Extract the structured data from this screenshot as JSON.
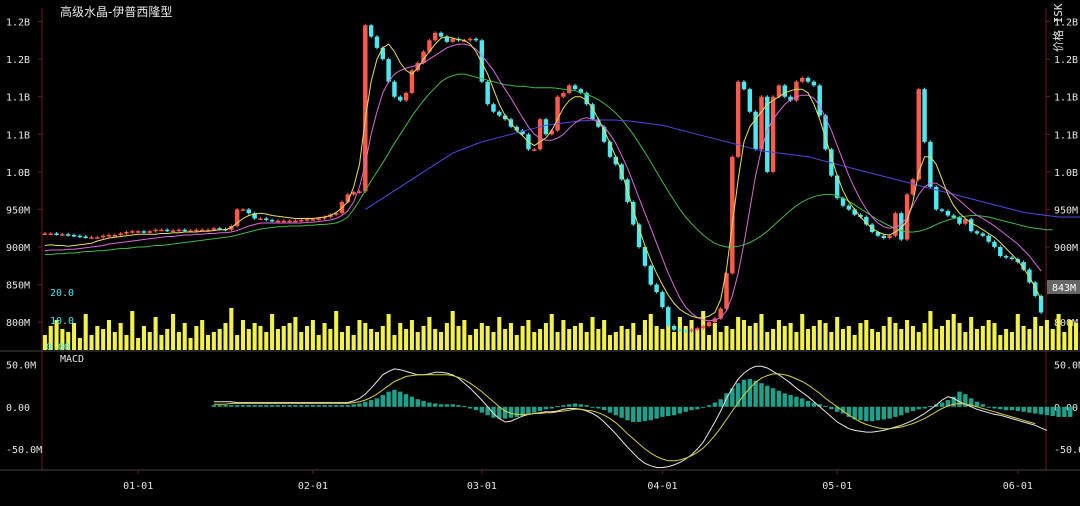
{
  "title": "高级水晶-伊普西隆型",
  "right_axis_label": "价格 ISK",
  "last_price_label": "843M",
  "volume_scale": {
    "top": "20.0",
    "mid": "10.0",
    "bottom": "0.00"
  },
  "macd_label": "MACD",
  "colors": {
    "up": "#ff5a4e",
    "down": "#4ee8f0",
    "volume": "#f2f04a",
    "macd_hist": "#1fa08a",
    "ma_fast": "#e6e05a",
    "ma_slow": "#d86ad8",
    "ma_long": "#42b842",
    "ma_xlong": "#4a4adf",
    "dif": "#e8e8e8",
    "dea": "#d8d040",
    "axis": "#6b1a1a",
    "text": "#e6e6e6"
  },
  "chart_data": {
    "type": "candlestick",
    "price_axis_labels": [
      "1.2B",
      "1.2B",
      "1.1B",
      "1.1B",
      "1.0B",
      "950M",
      "900M",
      "850M",
      "800M"
    ],
    "price_axis_values": [
      1230,
      1180,
      1130,
      1080,
      1030,
      980,
      930,
      880,
      830
    ],
    "price_ylim": [
      793,
      1248
    ],
    "macd_axis_labels": [
      "50.0M",
      "0.00",
      "-50.0M"
    ],
    "macd_axis_values": [
      50,
      0,
      -50
    ],
    "macd_ylim": [
      -75,
      65
    ],
    "x_tick_labels": [
      "01-01",
      "02-01",
      "03-01",
      "04-01",
      "05-01",
      "06-01"
    ],
    "x_tick_index": [
      16,
      46,
      75,
      106,
      136,
      167
    ],
    "closes": [
      948,
      948,
      947,
      947,
      946,
      945,
      944,
      943,
      943,
      943,
      945,
      946,
      946,
      948,
      950,
      951,
      951,
      950,
      951,
      953,
      953,
      952,
      952,
      953,
      952,
      952,
      953,
      953,
      953,
      955,
      954,
      953,
      958,
      980,
      980,
      975,
      968,
      968,
      966,
      965,
      965,
      965,
      965,
      965,
      966,
      967,
      967,
      968,
      970,
      973,
      975,
      990,
      1000,
      1003,
      1004,
      1225,
      1210,
      1195,
      1180,
      1150,
      1130,
      1125,
      1135,
      1165,
      1175,
      1190,
      1205,
      1215,
      1210,
      1203,
      1207,
      1205,
      1205,
      1207,
      1205,
      1150,
      1120,
      1110,
      1105,
      1100,
      1090,
      1085,
      1080,
      1060,
      1060,
      1100,
      1080,
      1085,
      1130,
      1135,
      1145,
      1140,
      1135,
      1120,
      1100,
      1090,
      1070,
      1050,
      1040,
      1020,
      990,
      960,
      930,
      905,
      880,
      870,
      850,
      825,
      820,
      819,
      818,
      820,
      822,
      825,
      830,
      835,
      848,
      895,
      1050,
      1150,
      1140,
      1110,
      1060,
      1130,
      1030,
      1130,
      1145,
      1130,
      1125,
      1150,
      1155,
      1150,
      1145,
      1105,
      1060,
      1025,
      995,
      985,
      980,
      973,
      970,
      960,
      950,
      945,
      942,
      945,
      975,
      940,
      1000,
      1020,
      1140,
      1070,
      1010,
      980,
      978,
      972,
      969,
      961,
      967,
      951,
      948,
      945,
      937,
      930,
      918,
      916,
      914,
      910,
      900,
      883,
      865,
      843
    ],
    "ma_fast": [
      932,
      933,
      932,
      932,
      931,
      932,
      933,
      934,
      935,
      938,
      940,
      942,
      943,
      944,
      945,
      946,
      947,
      947,
      947,
      947,
      948,
      948,
      949,
      949,
      950,
      950,
      950,
      951,
      951,
      952,
      953,
      953,
      956,
      962,
      968,
      972,
      974,
      975,
      974,
      972,
      971,
      970,
      969,
      968,
      968,
      968,
      968,
      969,
      970,
      972,
      976,
      982,
      990,
      1010,
      1040,
      1100,
      1150,
      1180,
      1195,
      1200,
      1190,
      1175,
      1165,
      1160,
      1168,
      1180,
      1190,
      1200,
      1208,
      1210,
      1208,
      1206,
      1205,
      1200,
      1190,
      1175,
      1160,
      1140,
      1120,
      1105,
      1095,
      1085,
      1078,
      1070,
      1065,
      1070,
      1075,
      1085,
      1100,
      1115,
      1125,
      1130,
      1130,
      1125,
      1115,
      1100,
      1085,
      1068,
      1050,
      1030,
      1005,
      980,
      955,
      932,
      912,
      895,
      880,
      866,
      855,
      847,
      842,
      838,
      836,
      836,
      838,
      843,
      860,
      900,
      960,
      1020,
      1070,
      1090,
      1100,
      1110,
      1120,
      1125,
      1130,
      1135,
      1138,
      1140,
      1140,
      1135,
      1120,
      1100,
      1075,
      1050,
      1025,
      1005,
      990,
      980,
      970,
      962,
      955,
      950,
      947,
      946,
      950,
      955,
      965,
      990,
      1030,
      1050,
      1050,
      1040,
      1020,
      1000,
      985,
      975,
      968,
      962,
      958,
      953,
      948,
      943,
      936,
      928,
      920,
      912,
      902,
      890,
      876,
      860
    ],
    "ma_slow": [
      925,
      926,
      926,
      926,
      927,
      927,
      928,
      929,
      930,
      931,
      932,
      934,
      935,
      936,
      937,
      938,
      939,
      940,
      941,
      942,
      943,
      944,
      944,
      945,
      946,
      946,
      947,
      947,
      948,
      948,
      949,
      949,
      950,
      952,
      955,
      958,
      960,
      962,
      962,
      962,
      962,
      962,
      962,
      962,
      962,
      963,
      963,
      964,
      965,
      966,
      968,
      972,
      978,
      990,
      1010,
      1040,
      1080,
      1110,
      1135,
      1150,
      1160,
      1165,
      1168,
      1170,
      1172,
      1175,
      1180,
      1185,
      1190,
      1195,
      1198,
      1200,
      1200,
      1198,
      1193,
      1185,
      1175,
      1165,
      1152,
      1140,
      1128,
      1115,
      1102,
      1090,
      1080,
      1075,
      1072,
      1072,
      1075,
      1080,
      1088,
      1095,
      1100,
      1102,
      1100,
      1096,
      1090,
      1080,
      1068,
      1052,
      1035,
      1015,
      995,
      975,
      955,
      935,
      915,
      895,
      878,
      862,
      850,
      842,
      836,
      833,
      832,
      833,
      836,
      845,
      865,
      895,
      935,
      980,
      1025,
      1060,
      1085,
      1100,
      1110,
      1120,
      1126,
      1130,
      1132,
      1132,
      1128,
      1118,
      1102,
      1085,
      1065,
      1045,
      1025,
      1008,
      993,
      980,
      970,
      962,
      957,
      955,
      956,
      960,
      970,
      985,
      1000,
      1010,
      1015,
      1015,
      1010,
      1005,
      998,
      992,
      985,
      978,
      972,
      968,
      963,
      958,
      952,
      946,
      940,
      934,
      926,
      918,
      908,
      898
    ],
    "ma_long": [
      920,
      920,
      921,
      921,
      922,
      922,
      923,
      924,
      924,
      925,
      925,
      926,
      927,
      928,
      928,
      929,
      930,
      930,
      931,
      932,
      932,
      933,
      934,
      935,
      936,
      937,
      938,
      939,
      940,
      941,
      942,
      943,
      944,
      946,
      948,
      950,
      952,
      954,
      955,
      956,
      957,
      957,
      958,
      958,
      958,
      959,
      959,
      960,
      960,
      961,
      962,
      965,
      970,
      980,
      992,
      1005,
      1018,
      1030,
      1042,
      1055,
      1068,
      1080,
      1092,
      1104,
      1115,
      1125,
      1134,
      1142,
      1150,
      1155,
      1158,
      1160,
      1160,
      1158,
      1156,
      1154,
      1152,
      1150,
      1148,
      1146,
      1145,
      1144,
      1144,
      1143,
      1142,
      1142,
      1142,
      1142,
      1141,
      1140,
      1139,
      1138,
      1136,
      1133,
      1130,
      1126,
      1121,
      1115,
      1108,
      1100,
      1090,
      1080,
      1068,
      1056,
      1043,
      1030,
      1017,
      1004,
      992,
      980,
      970,
      961,
      953,
      946,
      940,
      935,
      932,
      930,
      930,
      931,
      933,
      936,
      940,
      945,
      951,
      958,
      965,
      972,
      979,
      985,
      990,
      994,
      997,
      999,
      1000,
      1000,
      998,
      995,
      991,
      986,
      981,
      976,
      971,
      966,
      962,
      958,
      955,
      952,
      950,
      950,
      951,
      953,
      956,
      960,
      963,
      966,
      968,
      970,
      971,
      972,
      972,
      971,
      970,
      968,
      966,
      964,
      962,
      960,
      958,
      956,
      955,
      954,
      953,
      953
    ],
    "ma_xlong_start": 55,
    "ma_xlong": [
      980,
      985,
      990,
      995,
      1000,
      1005,
      1010,
      1015,
      1020,
      1025,
      1030,
      1035,
      1040,
      1045,
      1050,
      1055,
      1058,
      1061,
      1064,
      1067,
      1070,
      1072,
      1074,
      1076,
      1078,
      1080,
      1082,
      1084,
      1086,
      1088,
      1090,
      1092,
      1093,
      1094,
      1095,
      1096,
      1097,
      1098,
      1098,
      1099,
      1099,
      1099,
      1099,
      1099,
      1098,
      1098,
      1097,
      1096,
      1095,
      1094,
      1093,
      1092,
      1090,
      1088,
      1086,
      1084,
      1082,
      1080,
      1078,
      1076,
      1074,
      1072,
      1070,
      1068,
      1066,
      1064,
      1062,
      1060,
      1058,
      1057,
      1056,
      1055,
      1054,
      1053,
      1052,
      1051,
      1050,
      1048,
      1046,
      1044,
      1042,
      1040,
      1038,
      1036,
      1034,
      1032,
      1030,
      1028,
      1026,
      1024,
      1022,
      1020,
      1018,
      1016,
      1014,
      1012,
      1010,
      1008,
      1006,
      1004,
      1002,
      1000,
      998,
      996,
      994,
      992,
      990,
      988,
      986,
      984,
      982,
      980,
      978,
      976,
      975,
      974,
      973,
      972,
      971,
      970,
      970,
      970,
      970,
      970,
      971,
      972,
      973,
      974,
      975,
      976,
      977,
      978,
      979,
      980,
      980,
      981,
      981
    ],
    "volume": [
      5,
      8,
      10,
      7,
      6,
      9,
      4,
      12,
      5,
      8,
      7,
      10,
      6,
      9,
      5,
      13,
      4,
      8,
      6,
      11,
      5,
      7,
      12,
      6,
      9,
      4,
      8,
      10,
      5,
      6,
      7,
      9,
      14,
      5,
      10,
      7,
      9,
      8,
      6,
      12,
      7,
      8,
      9,
      11,
      6,
      8,
      10,
      5,
      9,
      7,
      13,
      6,
      8,
      5,
      10,
      9,
      7,
      6,
      8,
      12,
      5,
      9,
      7,
      10,
      6,
      8,
      11,
      7,
      6,
      9,
      13,
      8,
      10,
      5,
      7,
      9,
      8,
      6,
      11,
      7,
      9,
      5,
      8,
      10,
      6,
      7,
      9,
      12,
      6,
      10,
      7,
      8,
      9,
      6,
      11,
      7,
      10,
      5,
      6,
      8,
      7,
      9,
      5,
      10,
      12,
      8,
      7,
      9,
      6,
      11,
      8,
      10,
      7,
      13,
      5,
      9,
      6,
      8,
      7,
      11,
      10,
      8,
      9,
      12,
      6,
      7,
      10,
      8,
      9,
      6,
      12,
      7,
      8,
      10,
      9,
      6,
      11,
      7,
      8,
      5,
      9,
      10,
      7,
      6,
      8,
      11,
      9,
      7,
      10,
      8,
      6,
      9,
      13,
      7,
      8,
      10,
      12,
      9,
      6,
      11,
      7,
      8,
      10,
      9,
      5,
      7,
      6,
      12,
      8,
      7,
      11,
      8,
      10,
      7,
      12,
      6,
      10,
      9,
      6,
      8,
      11
    ],
    "macd_start": 29,
    "macd_hist": [
      2,
      2,
      2,
      2,
      2,
      2,
      2,
      2,
      2,
      2,
      2,
      2,
      2,
      2,
      2,
      2,
      2,
      2,
      2,
      2,
      2,
      2,
      2,
      2,
      3,
      4,
      6,
      8,
      10,
      14,
      18,
      20,
      18,
      15,
      12,
      9,
      7,
      5,
      4,
      3,
      3,
      3,
      2,
      1,
      -2,
      -4,
      -7,
      -10,
      -13,
      -14,
      -14,
      -13,
      -12,
      -11,
      -9,
      -7,
      -5,
      -3,
      -2,
      1,
      2,
      3,
      4,
      3,
      2,
      0,
      -2,
      -4,
      -7,
      -10,
      -13,
      -16,
      -18,
      -18,
      -17,
      -16,
      -14,
      -12,
      -11,
      -10,
      -8,
      -6,
      -4,
      -3,
      -1,
      2,
      5,
      9,
      16,
      22,
      28,
      32,
      33,
      31,
      28,
      25,
      22,
      19,
      16,
      14,
      12,
      10,
      7,
      5,
      3,
      1,
      -3,
      -6,
      -8,
      -12,
      -15,
      -16,
      -17,
      -17,
      -16,
      -15,
      -14,
      -12,
      -10,
      -7,
      -5,
      -3,
      -2,
      1,
      3,
      5,
      8,
      12,
      18,
      15,
      10,
      6,
      3,
      -1,
      -2,
      -3,
      -4,
      -4,
      -5,
      -6,
      -7,
      -8,
      -9,
      -10,
      -11,
      -12,
      -12,
      -12
    ],
    "dif": [
      6,
      6,
      6,
      6,
      5,
      5,
      5,
      5,
      5,
      5,
      5,
      5,
      5,
      5,
      5,
      5,
      5,
      5,
      5,
      5,
      5,
      5,
      5,
      5,
      7,
      10,
      15,
      22,
      30,
      38,
      42,
      45,
      44,
      42,
      40,
      38,
      38,
      39,
      41,
      41,
      40,
      38,
      34,
      28,
      22,
      15,
      8,
      0,
      -8,
      -14,
      -18,
      -17,
      -14,
      -11,
      -9,
      -8,
      -7,
      -6,
      -6,
      -5,
      -3,
      -2,
      -2,
      -3,
      -5,
      -8,
      -12,
      -18,
      -25,
      -32,
      -40,
      -48,
      -55,
      -62,
      -67,
      -70,
      -72,
      -72,
      -71,
      -69,
      -66,
      -62,
      -57,
      -50,
      -42,
      -30,
      -18,
      -5,
      10,
      22,
      33,
      40,
      45,
      48,
      48,
      46,
      42,
      38,
      33,
      28,
      22,
      17,
      12,
      6,
      0,
      -6,
      -12,
      -18,
      -22,
      -26,
      -28,
      -29,
      -30,
      -30,
      -29,
      -28,
      -26,
      -24,
      -22,
      -19,
      -16,
      -12,
      -8,
      -3,
      2,
      8,
      12,
      10,
      6,
      3,
      0,
      -3,
      -5,
      -7,
      -9,
      -10,
      -12,
      -14,
      -16,
      -18,
      -20,
      -22,
      -25,
      -28
    ],
    "dea": [
      3,
      3,
      3,
      4,
      4,
      4,
      4,
      4,
      4,
      4,
      4,
      4,
      4,
      4,
      4,
      4,
      4,
      4,
      4,
      4,
      4,
      4,
      4,
      4,
      5,
      6,
      8,
      11,
      15,
      20,
      25,
      30,
      33,
      36,
      37,
      38,
      38,
      38,
      38,
      38,
      38,
      37,
      35,
      32,
      28,
      23,
      18,
      12,
      6,
      0,
      -5,
      -8,
      -9,
      -9,
      -9,
      -8,
      -8,
      -7,
      -7,
      -6,
      -5,
      -4,
      -3,
      -3,
      -4,
      -5,
      -7,
      -10,
      -14,
      -19,
      -25,
      -32,
      -38,
      -44,
      -50,
      -55,
      -59,
      -62,
      -64,
      -64,
      -63,
      -61,
      -58,
      -54,
      -49,
      -42,
      -34,
      -25,
      -15,
      -5,
      5,
      14,
      22,
      29,
      34,
      37,
      39,
      39,
      38,
      36,
      33,
      30,
      26,
      21,
      16,
      10,
      5,
      0,
      -5,
      -10,
      -14,
      -18,
      -21,
      -23,
      -25,
      -26,
      -26,
      -25,
      -24,
      -22,
      -20,
      -17,
      -14,
      -10,
      -6,
      -2,
      1,
      3,
      4,
      3,
      2,
      0,
      -2,
      -4,
      -6,
      -8,
      -10,
      -12,
      -14,
      -16,
      -18,
      -20
    ]
  }
}
